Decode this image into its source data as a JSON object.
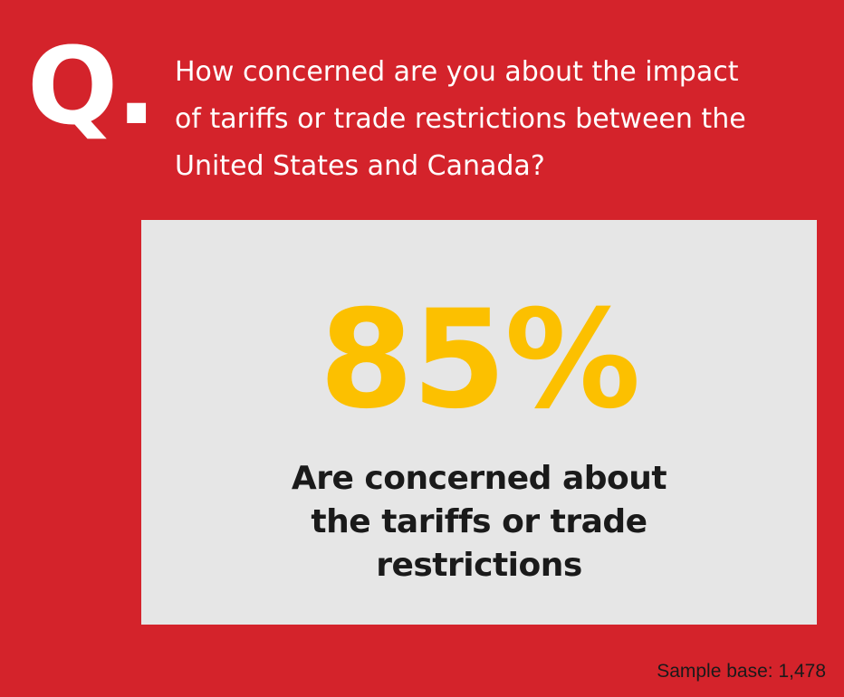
{
  "header": {
    "q_mark": "Q.",
    "question_lines": [
      "How concerned are you about the impact",
      "of tariffs or trade restrictions between the",
      "United States and Canada?"
    ]
  },
  "stat": {
    "value": "85%",
    "caption_lines": [
      "Are concerned about",
      "the tariffs or trade",
      "restrictions"
    ]
  },
  "footer": {
    "sample_base": "Sample base: 1,478"
  },
  "colors": {
    "background": "#D4232B",
    "card": "#E6E6E6",
    "accent": "#FCC000",
    "text_dark": "#1A1A1A",
    "text_light": "#FFFFFF"
  }
}
